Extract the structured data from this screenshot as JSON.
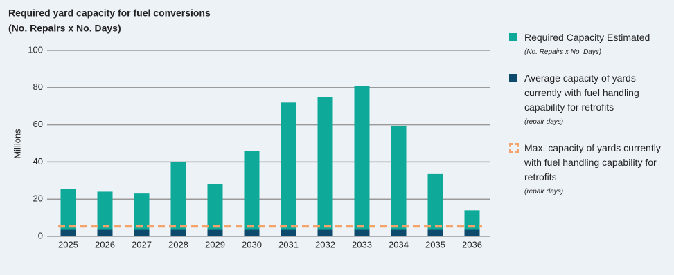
{
  "chart_data": {
    "type": "bar",
    "title": "Required yard capacity for fuel conversions",
    "subtitle": "(No. Repairs x No. Days)",
    "y_label": "Millions",
    "categories": [
      "2025",
      "2026",
      "2027",
      "2028",
      "2029",
      "2030",
      "2031",
      "2032",
      "2033",
      "2034",
      "2035",
      "2036"
    ],
    "series": [
      {
        "name": "Required Capacity Estimated",
        "note": "(No. Repairs x No. Days)",
        "color": "#0fa99a",
        "values": [
          25.5,
          24,
          23,
          40,
          28,
          46,
          72,
          75,
          81,
          59.5,
          33.5,
          14
        ]
      },
      {
        "name": "Average capacity of yards currently with fuel handling capability for retrofits",
        "note": "(repair days)",
        "color": "#0e4a6b",
        "values": [
          3.5,
          3.5,
          3.5,
          3.5,
          3.5,
          3.5,
          3.5,
          3.5,
          3.5,
          3.5,
          3.5,
          3.5
        ]
      }
    ],
    "reference_line": {
      "name": "Max. capacity of yards currently with fuel handling capability for retrofits",
      "note": "(repair days)",
      "color": "#f4a46a",
      "value": 5.5
    },
    "ylim": [
      0,
      100
    ],
    "yticks": [
      0,
      20,
      40,
      60,
      80,
      100
    ],
    "grid": true
  }
}
